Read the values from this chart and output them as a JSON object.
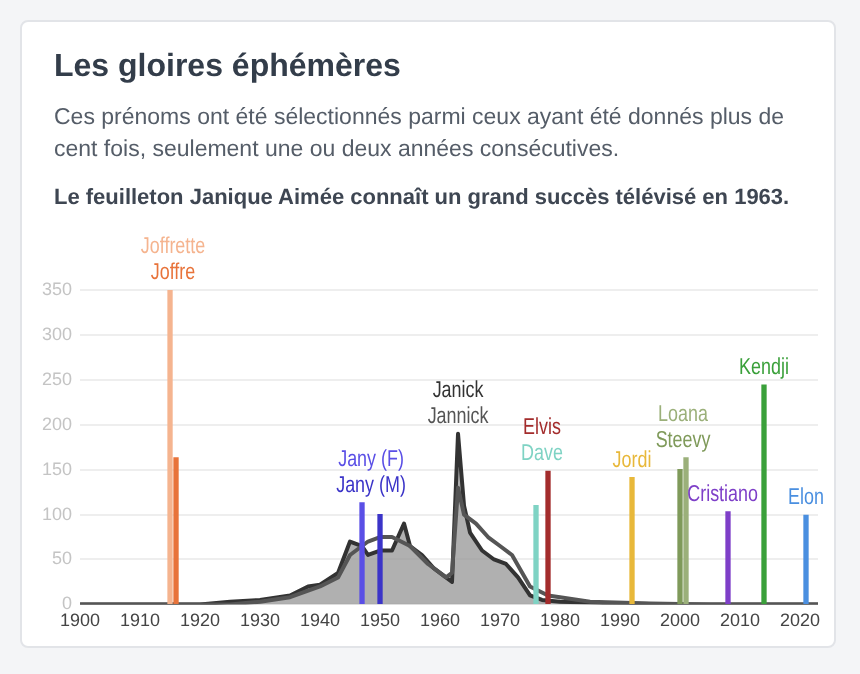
{
  "chart_data": {
    "type": "line",
    "title": "Les gloires éphémères",
    "subtitle": "Ces prénoms ont été sélectionnés parmi ceux ayant été donnés plus de cent fois, seulement une ou deux années consécutives.",
    "annotations": [
      "Le feuilleton Janique Aimée connaît un grand succès télévisé en 1963."
    ],
    "xlim": [
      1900,
      2023
    ],
    "xticks": [
      1900,
      1910,
      1920,
      1930,
      1940,
      1950,
      1960,
      1970,
      1980,
      1990,
      2000,
      2010,
      2020
    ],
    "ylim": [
      0,
      350
    ],
    "yticks": [
      0,
      50,
      100,
      150,
      200,
      250,
      300,
      350
    ],
    "grid": "y",
    "legend": false,
    "series": [
      {
        "name": "Janick",
        "type": "area",
        "color": "#333333",
        "x": [
          1900,
          1920,
          1925,
          1930,
          1935,
          1938,
          1940,
          1943,
          1945,
          1947,
          1948,
          1950,
          1952,
          1954,
          1955,
          1957,
          1959,
          1961,
          1962,
          1963,
          1964,
          1965,
          1967,
          1969,
          1971,
          1973,
          1975,
          1977,
          1980,
          1985,
          1990,
          2000,
          2023
        ],
        "values": [
          0,
          0,
          3,
          5,
          10,
          20,
          22,
          35,
          70,
          65,
          55,
          60,
          60,
          90,
          65,
          55,
          40,
          30,
          25,
          190,
          110,
          80,
          60,
          50,
          45,
          30,
          10,
          5,
          3,
          2,
          1,
          0,
          0
        ]
      },
      {
        "name": "Jannick",
        "color": "#555555",
        "x": [
          1900,
          1925,
          1930,
          1935,
          1940,
          1943,
          1945,
          1948,
          1950,
          1952,
          1955,
          1958,
          1961,
          1962,
          1963,
          1964,
          1966,
          1968,
          1970,
          1972,
          1975,
          1978,
          1980,
          1985,
          1995,
          2005,
          2023
        ],
        "values": [
          0,
          0,
          3,
          8,
          20,
          30,
          55,
          70,
          75,
          75,
          65,
          45,
          30,
          35,
          130,
          100,
          90,
          75,
          65,
          55,
          20,
          10,
          8,
          3,
          1,
          0,
          0
        ]
      },
      {
        "name": "Joffrette",
        "type": "bar",
        "color": "#f5b48f",
        "x": [
          1915
        ],
        "values": [
          350
        ]
      },
      {
        "name": "Joffre",
        "type": "bar",
        "color": "#e8733a",
        "x": [
          1916
        ],
        "values": [
          163
        ]
      },
      {
        "name": "Jany (F)",
        "type": "bar",
        "color": "#5a4fe6",
        "x": [
          1947
        ],
        "values": [
          113
        ]
      },
      {
        "name": "Jany (M)",
        "type": "bar",
        "color": "#3b34c8",
        "x": [
          1950
        ],
        "values": [
          100
        ]
      },
      {
        "name": "Elvis",
        "type": "bar",
        "color": "#a32c2c",
        "x": [
          1978
        ],
        "values": [
          148
        ]
      },
      {
        "name": "Dave",
        "type": "bar",
        "color": "#7fd3c4",
        "x": [
          1976
        ],
        "values": [
          110
        ]
      },
      {
        "name": "Jordi",
        "type": "bar",
        "color": "#e8b83a",
        "x": [
          1992
        ],
        "values": [
          141
        ]
      },
      {
        "name": "Loana",
        "type": "bar",
        "color": "#9bb07a",
        "x": [
          2001
        ],
        "values": [
          163
        ]
      },
      {
        "name": "Steevy",
        "type": "bar",
        "color": "#7f9a5a",
        "x": [
          2000
        ],
        "values": [
          150
        ]
      },
      {
        "name": "Cristiano",
        "type": "bar",
        "color": "#7e3fc8",
        "x": [
          2008
        ],
        "values": [
          103
        ]
      },
      {
        "name": "Kendji",
        "type": "bar",
        "color": "#3aa03a",
        "x": [
          2014
        ],
        "values": [
          244
        ]
      },
      {
        "name": "Elon",
        "type": "bar",
        "color": "#4a8fe0",
        "x": [
          2021
        ],
        "values": [
          99
        ]
      }
    ]
  }
}
